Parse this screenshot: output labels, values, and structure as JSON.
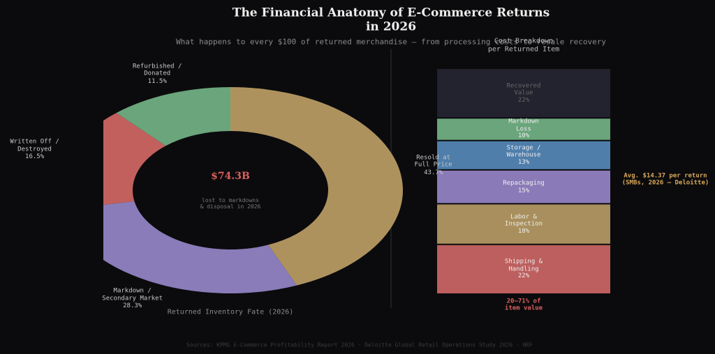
{
  "title": "The Financial Anatomy of E-Commerce Returns in 2026",
  "subtitle": "What happens to every $100 of returned merchandise — from processing costs to resale recovery",
  "sources": "Sources: KPMG E-Commerce Profitability Report 2026 · Deloitte Global Retail Operations Study 2026 · NRF",
  "chart_data": [
    {
      "type": "donut",
      "categories": [
        "Resold at\nFull Price",
        "Markdown /\nSecondary Market",
        "Written Off /\nDestroyed",
        "Refurbished /\nDonated"
      ],
      "values": [
        43.7,
        28.3,
        16.5,
        11.5
      ],
      "value_labels": [
        "43.7%",
        "28.3%",
        "16.5%",
        "11.5%"
      ],
      "colors": [
        "#ae925e",
        "#8a7cb9",
        "#c1605d",
        "#6aa57b"
      ],
      "center_value": "$74.3B",
      "center_label": "lost to markdowns\n& disposal in 2026",
      "xlabel": "Returned Inventory Fate (2026)"
    },
    {
      "type": "stacked_bar",
      "title": "Cost Breakdown\nper Returned Item",
      "categories": [
        "Shipping &\nHandling",
        "Labor &\nInspection",
        "Repackaging",
        "Storage /\nWarehouse",
        "Markdown\nLoss",
        "Recovered\nValue"
      ],
      "values": [
        22,
        18,
        15,
        13,
        10,
        22
      ],
      "value_labels": [
        "22%",
        "18%",
        "15%",
        "13%",
        "10%",
        "22%"
      ],
      "colors": [
        "#bd5f5e",
        "#a98f5d",
        "#8a7bb8",
        "#4f7eab",
        "#6aa57b",
        "#23232f"
      ],
      "annotations": [
        "Avg. $14.37 per return\n(SMBs, 2026 — Deloitte)",
        "20–71% of\nitem value"
      ]
    }
  ]
}
